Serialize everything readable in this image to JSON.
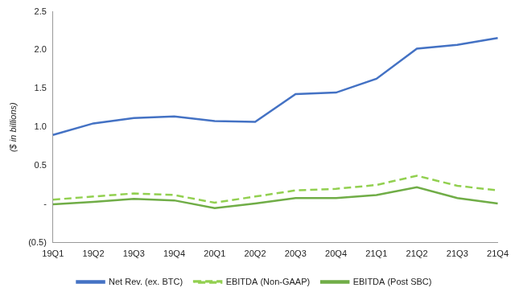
{
  "chart_data": {
    "type": "line",
    "y_label": "($ in billions)",
    "categories": [
      "19Q1",
      "19Q2",
      "19Q3",
      "19Q4",
      "20Q1",
      "20Q2",
      "20Q3",
      "20Q4",
      "21Q1",
      "21Q2",
      "21Q3",
      "21Q4"
    ],
    "series": [
      {
        "name": "Net Rev. (ex. BTC)",
        "color": "#4472c4",
        "line_style": "solid",
        "marker": "none",
        "values": [
          0.9,
          1.05,
          1.12,
          1.14,
          1.08,
          1.07,
          1.43,
          1.45,
          1.63,
          2.02,
          2.07,
          2.16
        ]
      },
      {
        "name": "EBITDA (Non-GAAP)",
        "color": "#92d050",
        "line_style": "dashed",
        "marker": "none",
        "values": [
          0.06,
          0.1,
          0.14,
          0.12,
          0.02,
          0.1,
          0.18,
          0.2,
          0.25,
          0.37,
          0.24,
          0.18
        ]
      },
      {
        "name": "EBITDA (Post SBC)",
        "color": "#70ad47",
        "line_style": "solid",
        "marker": "none",
        "values": [
          0.0,
          0.03,
          0.07,
          0.05,
          -0.05,
          0.01,
          0.08,
          0.08,
          0.12,
          0.22,
          0.08,
          0.01
        ]
      }
    ],
    "ylim": [
      -0.5,
      2.5
    ],
    "yticks": [
      {
        "value": -0.5,
        "label": "(0.5)"
      },
      {
        "value": 0,
        "label": "-"
      },
      0.5,
      {
        "value": 1,
        "label": "1.0"
      },
      1.5,
      {
        "value": 2,
        "label": "2.0"
      },
      2.5
    ],
    "grid": false,
    "legend": "bottom"
  }
}
